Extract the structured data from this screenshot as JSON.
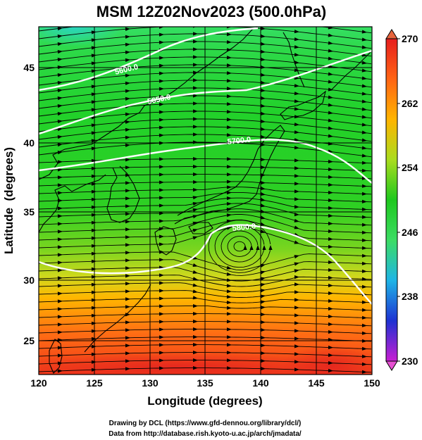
{
  "title": "MSM 12Z02Nov2023 (500.0hPa)",
  "map": {
    "xlabel": "Longitude (degrees)",
    "ylabel": "Latitude  (degrees)",
    "lon_range": [
      120,
      150
    ],
    "lat_range": [
      22.4,
      47.6
    ],
    "lon_ticks": [
      "120",
      "125",
      "130",
      "135",
      "140",
      "145",
      "150"
    ],
    "lat_ticks": [
      "25",
      "30",
      "35",
      "40",
      "45"
    ],
    "grid": true,
    "contours": [
      {
        "label": "5600.0",
        "lon": 128.9,
        "lat": 45.3
      },
      {
        "label": "5650.0",
        "lon": 131.6,
        "lat": 43.1
      },
      {
        "label": "5700.0",
        "lon": 138.0,
        "lat": 40.0
      },
      {
        "label": "5800.0",
        "lon": 137.6,
        "lat": 33.9
      }
    ]
  },
  "colorbar": {
    "min": 230,
    "max": 270,
    "ticks": [
      "270",
      "262",
      "254",
      "246",
      "238",
      "230"
    ],
    "colors": [
      "#c81ed2",
      "#1e32d2",
      "#1eb4e6",
      "#3cdc64",
      "#1ec81e",
      "#aadc1e",
      "#ffb400",
      "#ff6414",
      "#e61e1e"
    ]
  },
  "credits": {
    "line1": "Drawing by DCL (https://www.gfd-dennou.org/library/dcl/)",
    "line2": "Data from http://database.rish.kyoto-u.ac.jp/arch/jmadata/"
  }
}
